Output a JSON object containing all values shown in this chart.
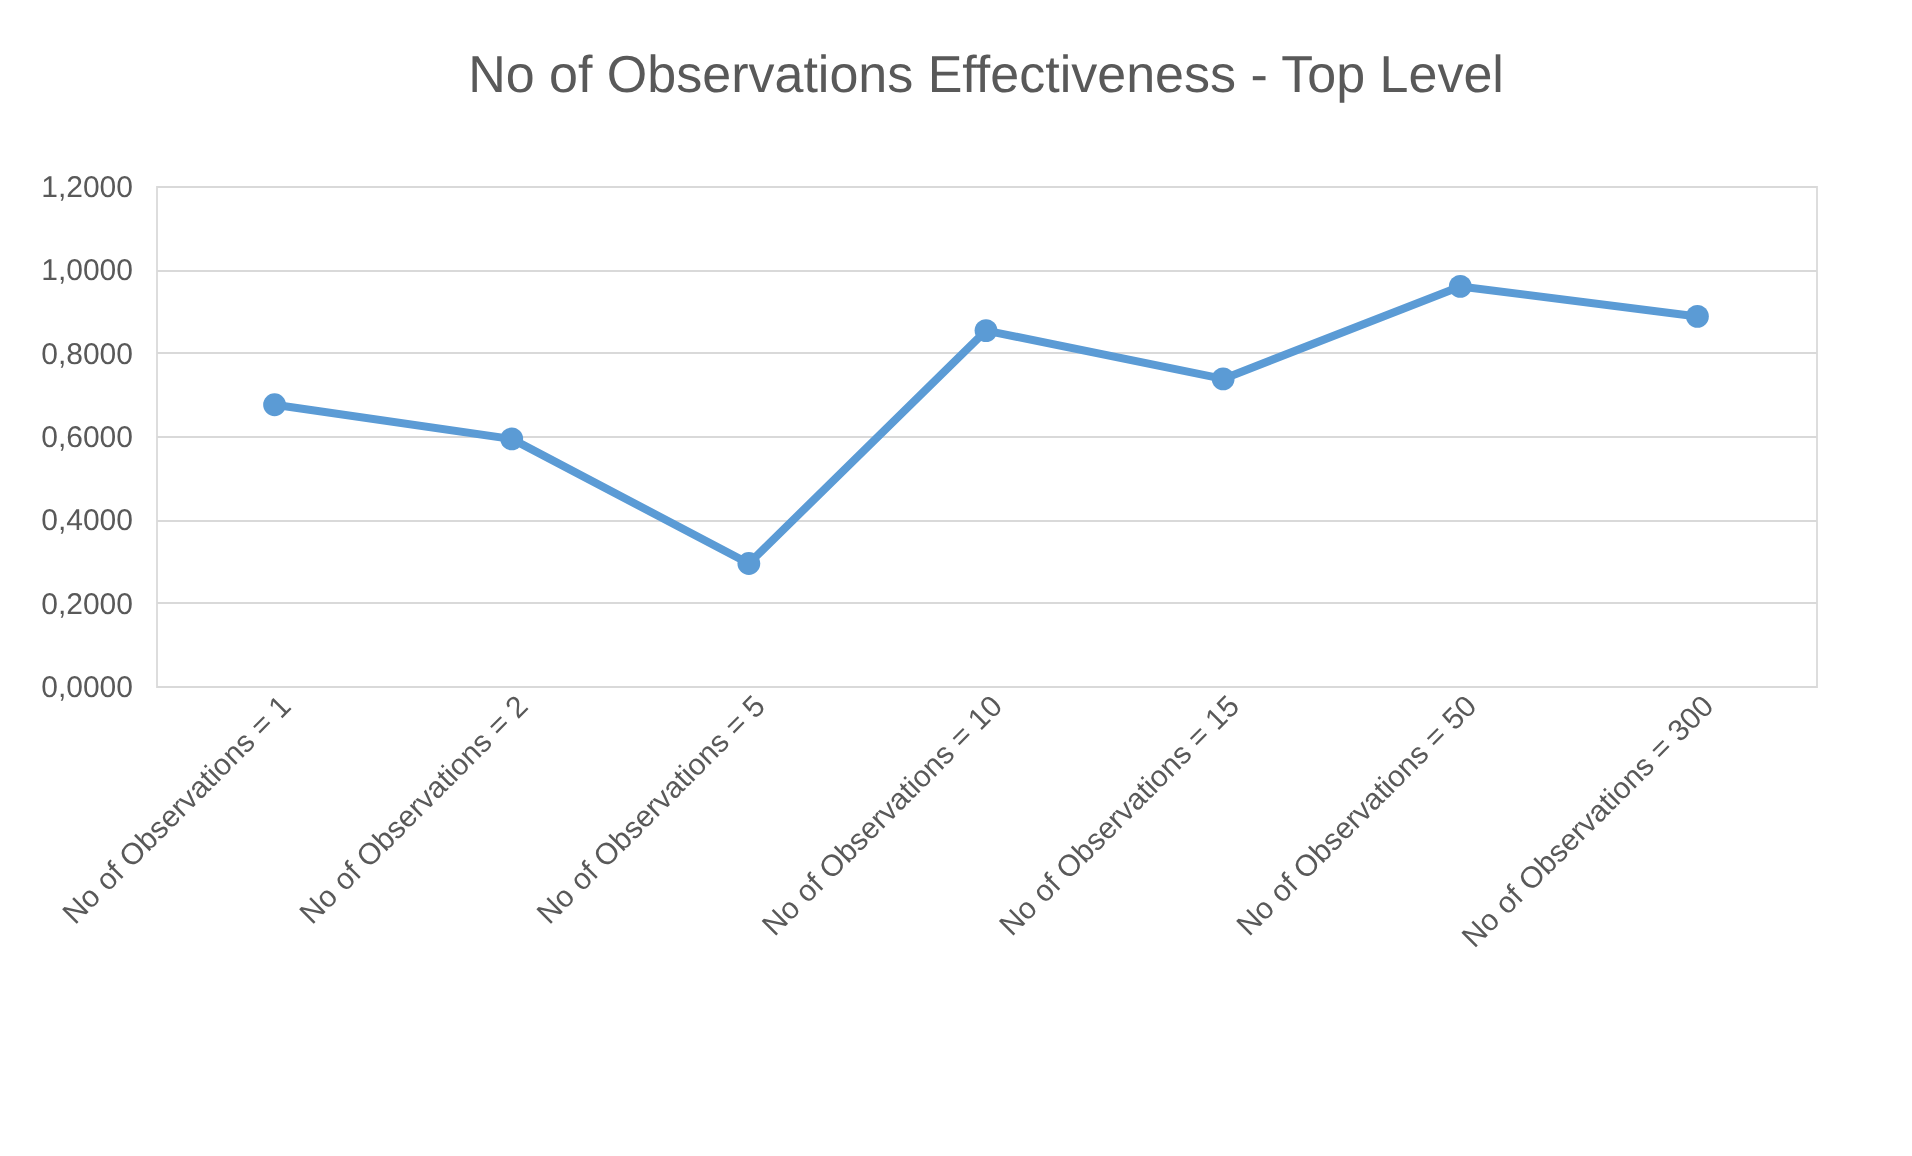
{
  "chart_data": {
    "type": "line",
    "title": "No of Observations Effectiveness - Top Level",
    "categories": [
      "No of Observations = 1",
      "No of Observations = 2",
      "No of Observations = 5",
      "No of Observations = 10",
      "No of Observations = 15",
      "No of Observations = 50",
      "No of Observations = 300"
    ],
    "series": [
      {
        "color": "#5b9bd5",
        "values": [
          0.675,
          0.593,
          0.294,
          0.853,
          0.737,
          0.959,
          0.887
        ]
      }
    ],
    "ylim": [
      0,
      1.2
    ],
    "yticks": [
      {
        "value": 0,
        "label": "0,0000"
      },
      {
        "value": 0.2,
        "label": "0,2000"
      },
      {
        "value": 0.4,
        "label": "0,4000"
      },
      {
        "value": 0.6,
        "label": "0,6000"
      },
      {
        "value": 0.8,
        "label": "0,8000"
      },
      {
        "value": 1.0,
        "label": "1,0000"
      },
      {
        "value": 1.2,
        "label": "1,2000"
      }
    ],
    "grid": "y",
    "marker": "circle",
    "line_style": "solid"
  }
}
